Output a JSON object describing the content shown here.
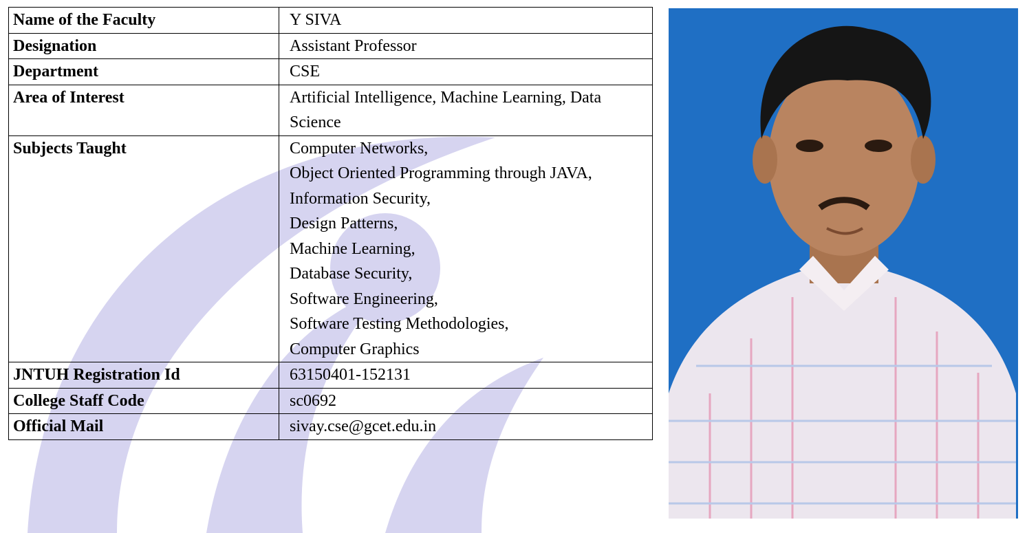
{
  "profile": {
    "rows": [
      {
        "label": "Name of the Faculty",
        "value": "Y SIVA"
      },
      {
        "label": "Designation",
        "value": "Assistant Professor"
      },
      {
        "label": "Department",
        "value": "CSE"
      },
      {
        "label": "Area of Interest",
        "value": "Artificial Intelligence, Machine Learning, Data Science"
      },
      {
        "label": "Subjects Taught",
        "items": [
          "Computer Networks,",
          "Object Oriented Programming through JAVA,",
          "Information Security,",
          "Design Patterns,",
          "Machine Learning,",
          "Database Security,",
          "Software Engineering,",
          "Software Testing Methodologies,",
          "Computer Graphics"
        ]
      },
      {
        "label": "JNTUH Registration Id",
        "value": "63150401-152131"
      },
      {
        "label": "College Staff Code",
        "value": "sc0692"
      },
      {
        "label": "Official Mail",
        "value": "sivay.cse@gcet.edu.in"
      }
    ]
  }
}
